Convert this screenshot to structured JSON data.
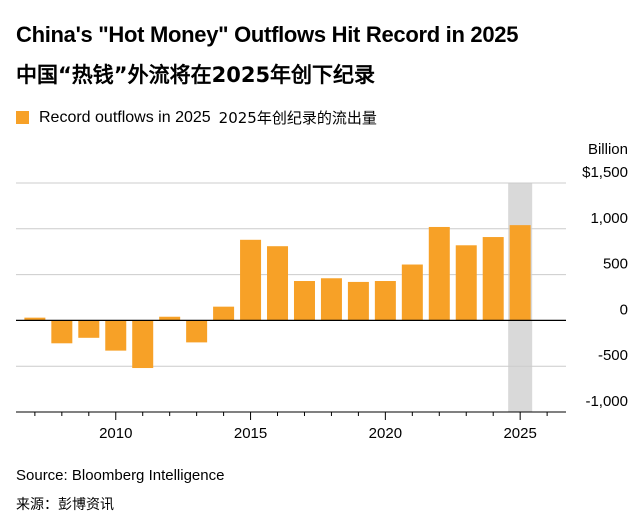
{
  "title": "China's \"Hot Money\" Outflows Hit Record in 2025",
  "subtitle": "中国“热钱”外流将在2025年创下纪录",
  "legend": {
    "label": "Record outflows in 2025",
    "label_cn": "2025年创纪录的流出量"
  },
  "source": "Source: Bloomberg Intelligence",
  "source_cn": "来源：彭博资讯",
  "colors": {
    "bar": "#f7a127",
    "highlight": "#d9d9d9",
    "grid": "#cccccc",
    "axis": "#000000"
  },
  "chart_data": {
    "type": "bar",
    "unit_label": "Billion",
    "categories": [
      2007,
      2008,
      2009,
      2010,
      2011,
      2012,
      2013,
      2014,
      2015,
      2016,
      2017,
      2018,
      2019,
      2020,
      2021,
      2022,
      2023,
      2024,
      2025
    ],
    "values": [
      30,
      -250,
      -190,
      -330,
      -520,
      40,
      -240,
      150,
      880,
      810,
      430,
      460,
      420,
      430,
      610,
      1020,
      820,
      910,
      1040
    ],
    "highlight_category": 2025,
    "xlim": [
      2006.3,
      2026.7
    ],
    "ylim": [
      -1000,
      1500
    ],
    "yticks": [
      1500,
      1000,
      500,
      0,
      -500,
      -1000
    ],
    "ytick_labels": [
      "$1,500",
      "1,000",
      "500",
      "0",
      "-500",
      "-1,000"
    ],
    "xticks": [
      2010,
      2015,
      2020,
      2025
    ],
    "xtick_labels": [
      "2010",
      "2015",
      "2020",
      "2025"
    ],
    "grid": true,
    "legend_position": "top-left"
  }
}
